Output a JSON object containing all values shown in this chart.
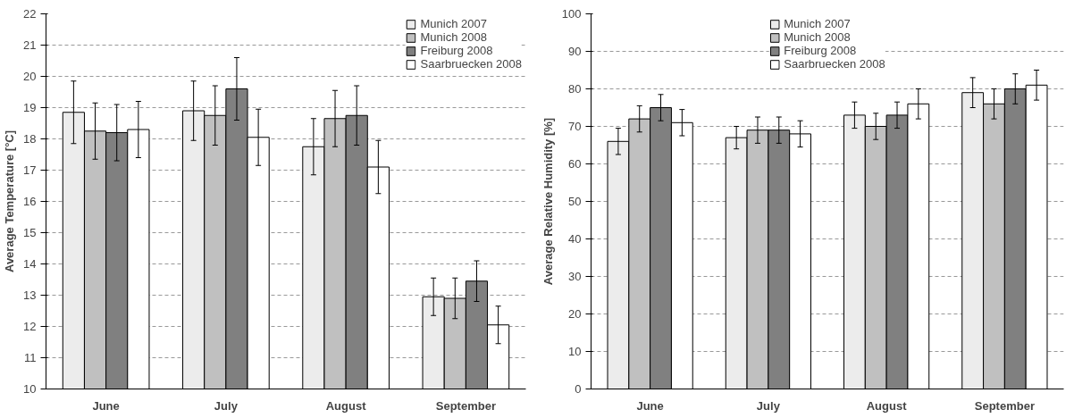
{
  "chart_data": [
    {
      "type": "bar",
      "ylabel": "Average Temperature [°C]",
      "categories": [
        "June",
        "July",
        "August",
        "September"
      ],
      "series": [
        {
          "name": "Munich 2007",
          "color": "#ececec",
          "values": [
            18.85,
            18.9,
            17.75,
            12.95
          ],
          "errors": [
            1.0,
            0.95,
            0.9,
            0.6
          ]
        },
        {
          "name": "Munich 2008",
          "color": "#c0c0c0",
          "values": [
            18.25,
            18.75,
            18.65,
            12.9
          ],
          "errors": [
            0.9,
            0.95,
            0.9,
            0.65
          ]
        },
        {
          "name": "Freiburg 2008",
          "color": "#808080",
          "values": [
            18.2,
            19.6,
            18.75,
            13.45
          ],
          "errors": [
            0.9,
            1.0,
            0.95,
            0.65
          ]
        },
        {
          "name": "Saarbruecken 2008",
          "color": "#ffffff",
          "values": [
            18.3,
            18.05,
            17.1,
            12.05
          ],
          "errors": [
            0.9,
            0.9,
            0.85,
            0.6
          ]
        }
      ],
      "ylim": [
        10,
        22
      ],
      "yticks": [
        10,
        11,
        12,
        13,
        14,
        15,
        16,
        17,
        18,
        19,
        20,
        21,
        22
      ],
      "grid": "y",
      "legend": "top right"
    },
    {
      "type": "bar",
      "ylabel": "Average Relative Humidity [%]",
      "categories": [
        "June",
        "July",
        "August",
        "September"
      ],
      "series": [
        {
          "name": "Munich 2007",
          "color": "#ececec",
          "values": [
            66,
            67,
            73,
            79
          ],
          "errors": [
            3.5,
            3,
            3.5,
            4
          ]
        },
        {
          "name": "Munich 2008",
          "color": "#c0c0c0",
          "values": [
            72,
            69,
            70,
            76
          ],
          "errors": [
            3.5,
            3.5,
            3.5,
            4
          ]
        },
        {
          "name": "Freiburg 2008",
          "color": "#808080",
          "values": [
            75,
            69,
            73,
            80
          ],
          "errors": [
            3.5,
            3.5,
            3.5,
            4
          ]
        },
        {
          "name": "Saarbruecken 2008",
          "color": "#ffffff",
          "values": [
            71,
            68,
            76,
            81
          ],
          "errors": [
            3.5,
            3.5,
            4,
            4
          ]
        }
      ],
      "ylim": [
        0,
        100
      ],
      "yticks": [
        0,
        10,
        20,
        30,
        40,
        50,
        60,
        70,
        80,
        90,
        100
      ],
      "grid": "y",
      "legend": "top"
    }
  ]
}
